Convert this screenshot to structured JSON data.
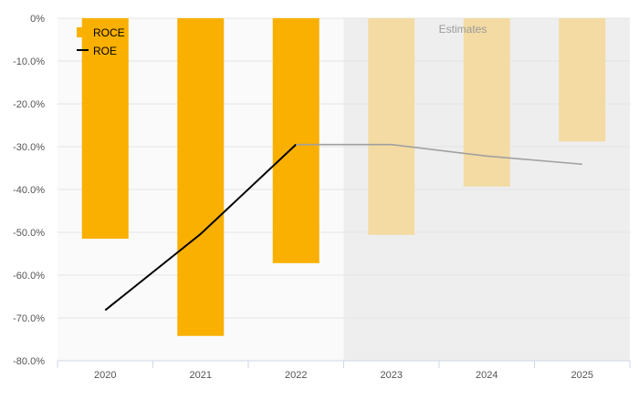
{
  "chart_data": {
    "type": "bar",
    "categories": [
      "2020",
      "2021",
      "2022",
      "2023",
      "2024",
      "2025"
    ],
    "series": [
      {
        "name": "ROCE",
        "kind": "bar",
        "values": [
          -51.5,
          -74.2,
          -57.2,
          -50.6,
          -39.3,
          -28.8
        ]
      },
      {
        "name": "ROE",
        "kind": "line",
        "values": [
          -68.2,
          -50.4,
          -29.5,
          -29.5,
          -32.2,
          -34.1
        ]
      }
    ],
    "estimate_start_index": 3,
    "estimates_label": "Estimates",
    "ylim": [
      -80,
      0
    ],
    "yticks": [
      0,
      -10,
      -20,
      -30,
      -40,
      -50,
      -60,
      -70,
      -80
    ],
    "ytick_labels": [
      "0%",
      "-10.0%",
      "-20.0%",
      "-30.0%",
      "-40.0%",
      "-50.0%",
      "-60.0%",
      "-70.0%",
      "-80.0%"
    ],
    "grid": true,
    "legend_position": "top-left",
    "colors": {
      "roce": "#f9b000",
      "roce_estimate": "#f3dba3",
      "roe": "#000000",
      "roe_estimate": "#a0a0a0",
      "estimate_bg": "#eeeeee",
      "actual_bg": "#fafafa",
      "grid": "#e4e4e4",
      "axis_text": "#555555"
    }
  }
}
